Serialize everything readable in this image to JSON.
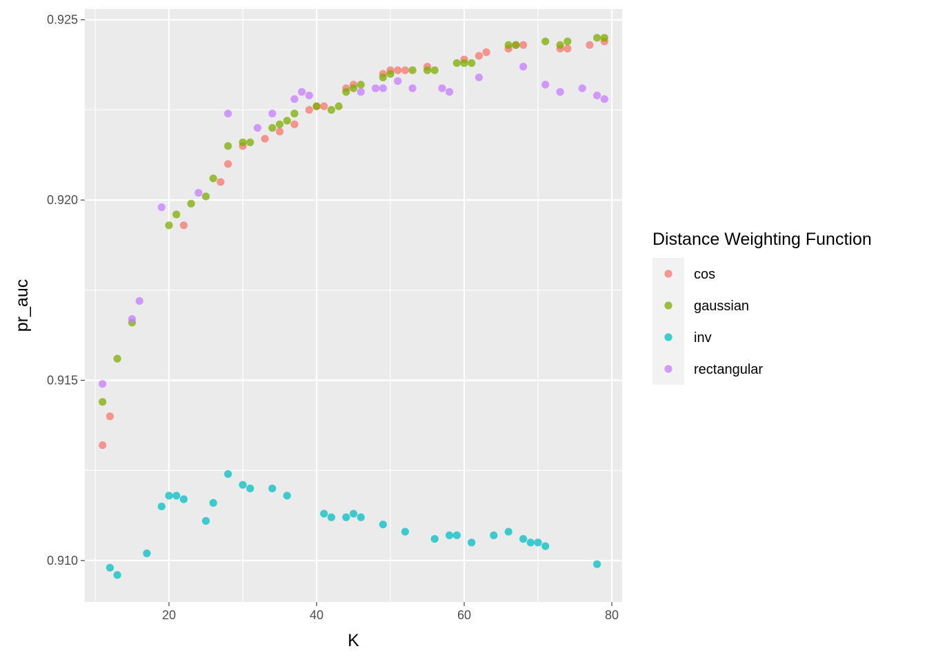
{
  "chart_data": {
    "type": "scatter",
    "xlabel": "K",
    "ylabel": "pr_auc",
    "xlim": [
      8.6,
      81.4
    ],
    "ylim": [
      0.90885,
      0.9253
    ],
    "x_ticks": [
      20,
      40,
      60,
      80
    ],
    "x_tick_labels": [
      "20",
      "40",
      "60",
      "80"
    ],
    "y_ticks": [
      0.91,
      0.915,
      0.92,
      0.925
    ],
    "y_tick_labels": [
      "0.910",
      "0.915",
      "0.920",
      "0.925"
    ],
    "grid": true,
    "legend": {
      "title": "Distance Weighting Function",
      "placement": "right"
    },
    "series": [
      {
        "name": "cos",
        "color": "#F8766D",
        "points": [
          [
            11,
            0.9132
          ],
          [
            12,
            0.914
          ],
          [
            22,
            0.9193
          ],
          [
            27,
            0.9205
          ],
          [
            28,
            0.921
          ],
          [
            30,
            0.9215
          ],
          [
            33,
            0.9217
          ],
          [
            35,
            0.9219
          ],
          [
            37,
            0.9221
          ],
          [
            39,
            0.9225
          ],
          [
            40,
            0.9226
          ],
          [
            41,
            0.9226
          ],
          [
            44,
            0.9231
          ],
          [
            45,
            0.9232
          ],
          [
            49,
            0.9235
          ],
          [
            50,
            0.9236
          ],
          [
            51,
            0.9236
          ],
          [
            52,
            0.9236
          ],
          [
            55,
            0.9237
          ],
          [
            60,
            0.9239
          ],
          [
            62,
            0.924
          ],
          [
            63,
            0.9241
          ],
          [
            66,
            0.9242
          ],
          [
            67,
            0.9243
          ],
          [
            68,
            0.9243
          ],
          [
            73,
            0.9242
          ],
          [
            74,
            0.9242
          ],
          [
            77,
            0.9243
          ],
          [
            79,
            0.9244
          ]
        ]
      },
      {
        "name": "gaussian",
        "color": "#7CAE00",
        "points": [
          [
            11,
            0.9144
          ],
          [
            13,
            0.9156
          ],
          [
            15,
            0.9166
          ],
          [
            20,
            0.9193
          ],
          [
            21,
            0.9196
          ],
          [
            23,
            0.9199
          ],
          [
            25,
            0.9201
          ],
          [
            26,
            0.9206
          ],
          [
            28,
            0.9215
          ],
          [
            30,
            0.9216
          ],
          [
            31,
            0.9216
          ],
          [
            34,
            0.922
          ],
          [
            35,
            0.9221
          ],
          [
            36,
            0.9222
          ],
          [
            37,
            0.9224
          ],
          [
            40,
            0.9226
          ],
          [
            42,
            0.9225
          ],
          [
            43,
            0.9226
          ],
          [
            44,
            0.923
          ],
          [
            45,
            0.9231
          ],
          [
            46,
            0.9232
          ],
          [
            49,
            0.9234
          ],
          [
            50,
            0.9235
          ],
          [
            53,
            0.9236
          ],
          [
            55,
            0.9236
          ],
          [
            56,
            0.9236
          ],
          [
            59,
            0.9238
          ],
          [
            60,
            0.9238
          ],
          [
            61,
            0.9238
          ],
          [
            66,
            0.9243
          ],
          [
            67,
            0.9243
          ],
          [
            71,
            0.9244
          ],
          [
            73,
            0.9243
          ],
          [
            74,
            0.9244
          ],
          [
            78,
            0.9245
          ],
          [
            79,
            0.9245
          ]
        ]
      },
      {
        "name": "inv",
        "color": "#00BFC4",
        "points": [
          [
            12,
            0.9098
          ],
          [
            13,
            0.9096
          ],
          [
            17,
            0.9102
          ],
          [
            19,
            0.9115
          ],
          [
            20,
            0.9118
          ],
          [
            21,
            0.9118
          ],
          [
            22,
            0.9117
          ],
          [
            25,
            0.9111
          ],
          [
            26,
            0.9116
          ],
          [
            28,
            0.9124
          ],
          [
            30,
            0.9121
          ],
          [
            31,
            0.912
          ],
          [
            34,
            0.912
          ],
          [
            36,
            0.9118
          ],
          [
            41,
            0.9113
          ],
          [
            42,
            0.9112
          ],
          [
            44,
            0.9112
          ],
          [
            45,
            0.9113
          ],
          [
            46,
            0.9112
          ],
          [
            49,
            0.911
          ],
          [
            52,
            0.9108
          ],
          [
            56,
            0.9106
          ],
          [
            58,
            0.9107
          ],
          [
            59,
            0.9107
          ],
          [
            61,
            0.9105
          ],
          [
            64,
            0.9107
          ],
          [
            66,
            0.9108
          ],
          [
            68,
            0.9106
          ],
          [
            69,
            0.9105
          ],
          [
            70,
            0.9105
          ],
          [
            71,
            0.9104
          ],
          [
            78,
            0.9099
          ]
        ]
      },
      {
        "name": "rectangular",
        "color": "#C77CFF",
        "points": [
          [
            11,
            0.9149
          ],
          [
            15,
            0.9167
          ],
          [
            16,
            0.9172
          ],
          [
            19,
            0.9198
          ],
          [
            24,
            0.9202
          ],
          [
            28,
            0.9224
          ],
          [
            32,
            0.922
          ],
          [
            34,
            0.9224
          ],
          [
            37,
            0.9228
          ],
          [
            38,
            0.923
          ],
          [
            39,
            0.9229
          ],
          [
            46,
            0.923
          ],
          [
            48,
            0.9231
          ],
          [
            49,
            0.9231
          ],
          [
            51,
            0.9233
          ],
          [
            53,
            0.9231
          ],
          [
            57,
            0.9231
          ],
          [
            58,
            0.923
          ],
          [
            62,
            0.9234
          ],
          [
            68,
            0.9237
          ],
          [
            71,
            0.9232
          ],
          [
            73,
            0.923
          ],
          [
            76,
            0.9231
          ],
          [
            78,
            0.9229
          ],
          [
            79,
            0.9228
          ]
        ]
      }
    ]
  }
}
